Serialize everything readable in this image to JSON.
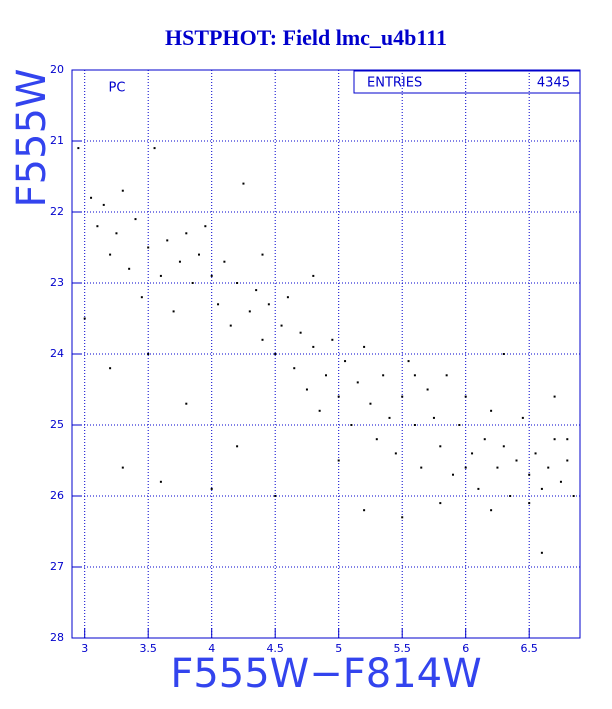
{
  "chart_data": {
    "type": "scatter",
    "title": "HSTPHOT: Field lmc_u4b111",
    "xlabel": "F555W−F814W",
    "ylabel": "F555W",
    "annotation": "PC",
    "stats_label": "ENTRIES",
    "entries": 4345,
    "xlim": [
      2.9,
      6.9
    ],
    "ylim": [
      20,
      28
    ],
    "y_inverted": true,
    "xticks": [
      3,
      3.5,
      4,
      4.5,
      5,
      5.5,
      6,
      6.5
    ],
    "yticks": [
      20,
      21,
      22,
      23,
      24,
      25,
      26,
      27,
      28
    ],
    "grid": true,
    "axis_color": "#0000cc",
    "grid_color": "#0000cc",
    "series": [
      {
        "color": "#000000",
        "x": [
          2.95,
          3.05,
          3.1,
          3.15,
          3.2,
          3.25,
          3.3,
          3.35,
          3.4,
          3.45,
          3.5,
          3.55,
          3.6,
          3.65,
          3.7,
          3.75,
          3.8,
          3.85,
          3.9,
          3.95,
          4.0,
          4.05,
          4.1,
          4.15,
          4.2,
          4.25,
          4.3,
          4.35,
          4.4,
          4.45,
          4.5,
          4.55,
          4.6,
          4.65,
          4.7,
          4.75,
          4.8,
          4.85,
          4.9,
          4.95,
          5.0,
          5.05,
          5.1,
          5.15,
          5.2,
          5.25,
          5.3,
          5.35,
          5.4,
          5.45,
          5.5,
          5.55,
          5.6,
          5.65,
          5.7,
          5.75,
          5.8,
          5.85,
          5.9,
          5.95,
          6.0,
          6.05,
          6.1,
          6.15,
          6.2,
          6.25,
          6.3,
          6.35,
          6.4,
          6.45,
          6.5,
          6.55,
          6.6,
          6.65,
          6.7,
          6.75,
          6.8,
          6.85,
          6.6,
          3.3,
          3.6,
          4.0,
          4.5,
          5.0,
          3.2,
          3.8,
          4.2,
          5.2,
          5.5,
          3.0,
          3.5,
          6.3,
          6.7,
          5.8,
          6.2,
          6.8,
          6.5,
          6.0,
          5.6,
          4.8,
          4.4
        ],
        "y": [
          21.1,
          21.8,
          22.2,
          21.9,
          22.6,
          22.3,
          21.7,
          22.8,
          22.1,
          23.2,
          22.5,
          21.1,
          22.9,
          22.4,
          23.4,
          22.7,
          22.3,
          23.0,
          22.6,
          22.2,
          22.9,
          23.3,
          22.7,
          23.6,
          23.0,
          21.6,
          23.4,
          23.1,
          23.8,
          23.3,
          24.0,
          23.6,
          23.2,
          24.2,
          23.7,
          24.5,
          23.9,
          24.8,
          24.3,
          23.8,
          24.6,
          24.1,
          25.0,
          24.4,
          23.9,
          24.7,
          25.2,
          24.3,
          24.9,
          25.4,
          24.6,
          24.1,
          25.0,
          25.6,
          24.5,
          24.9,
          25.3,
          24.3,
          25.7,
          25.0,
          24.6,
          25.4,
          25.9,
          25.2,
          24.8,
          25.6,
          25.3,
          26.0,
          25.5,
          24.9,
          25.7,
          25.4,
          25.9,
          25.6,
          25.2,
          25.8,
          25.5,
          26.0,
          26.8,
          25.6,
          25.8,
          25.9,
          26.0,
          25.5,
          24.2,
          24.7,
          25.3,
          26.2,
          26.3,
          23.5,
          24.0,
          24.0,
          24.6,
          26.1,
          26.2,
          25.2,
          26.1,
          25.6,
          24.3,
          22.9,
          22.6
        ]
      }
    ]
  }
}
